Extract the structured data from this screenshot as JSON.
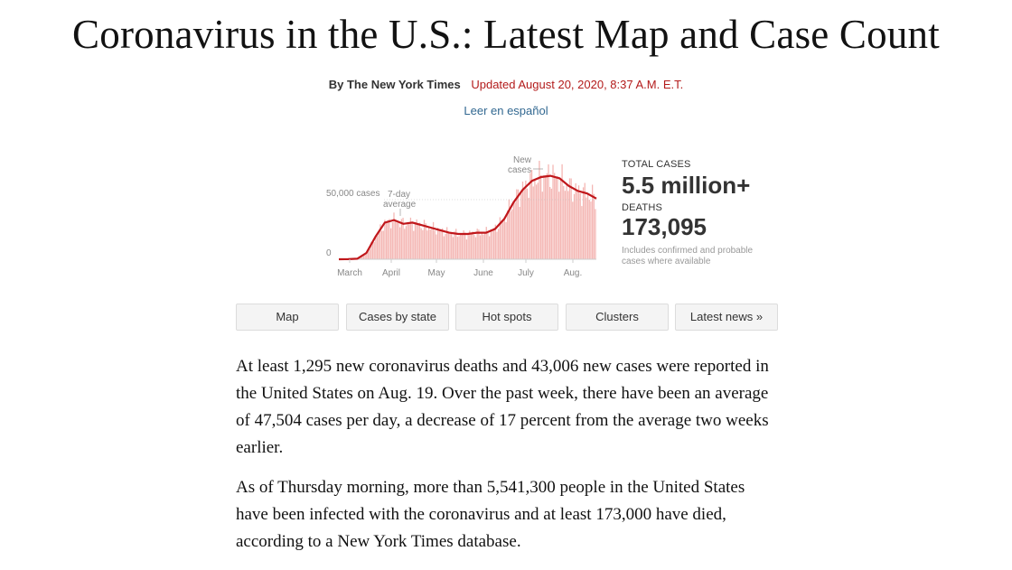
{
  "headline": "Coronavirus in the U.S.: Latest Map and Case Count",
  "byline": "By The New York Times",
  "updated": "Updated August 20, 2020, 8:37 A.M. E.T.",
  "spanish_link": "Leer en español",
  "colors": {
    "accent_red": "#b31b1b",
    "bar_pink": "#f4b6b3",
    "line_red": "#c0171b",
    "link_blue": "#326891"
  },
  "chart_data": {
    "type": "bar",
    "title": "",
    "series": [
      {
        "name": "New cases",
        "kind": "bar"
      },
      {
        "name": "7-day average",
        "kind": "line"
      }
    ],
    "x_labels": [
      "March",
      "April",
      "May",
      "June",
      "July",
      "Aug."
    ],
    "y_tick_labels": [
      "0",
      "50,000 cases"
    ],
    "annotations": {
      "new_cases": "New cases",
      "avg": "7-day average",
      "new_line1": "New",
      "new_line2": "cases",
      "avg_line1": "7-day",
      "avg_line2": "average"
    },
    "ylim": [
      0,
      80000
    ],
    "weekly_average": [
      0,
      50,
      400,
      5000,
      18000,
      29000,
      31000,
      28000,
      29000,
      27000,
      25000,
      23000,
      21000,
      20000,
      20000,
      21000,
      21000,
      24000,
      32000,
      45000,
      55000,
      62000,
      65000,
      66000,
      64000,
      58000,
      54000,
      52000,
      48000
    ]
  },
  "stats": {
    "total_label": "TOTAL CASES",
    "total_value": "5.5 million+",
    "deaths_label": "DEATHS",
    "deaths_value": "173,095",
    "note": "Includes confirmed and probable cases where available"
  },
  "nav": [
    "Map",
    "Cases by state",
    "Hot spots",
    "Clusters",
    "Latest news »"
  ],
  "paragraphs": [
    "At least 1,295 new coronavirus deaths and 43,006 new cases were reported in the United States on Aug. 19. Over the past week, there have been an average of 47,504 cases per day, a decrease of 17 percent from the average two weeks earlier.",
    "As of Thursday morning, more than 5,541,300 people in the United States have been infected with the coronavirus and at least 173,000 have died, according to a New York Times database."
  ]
}
